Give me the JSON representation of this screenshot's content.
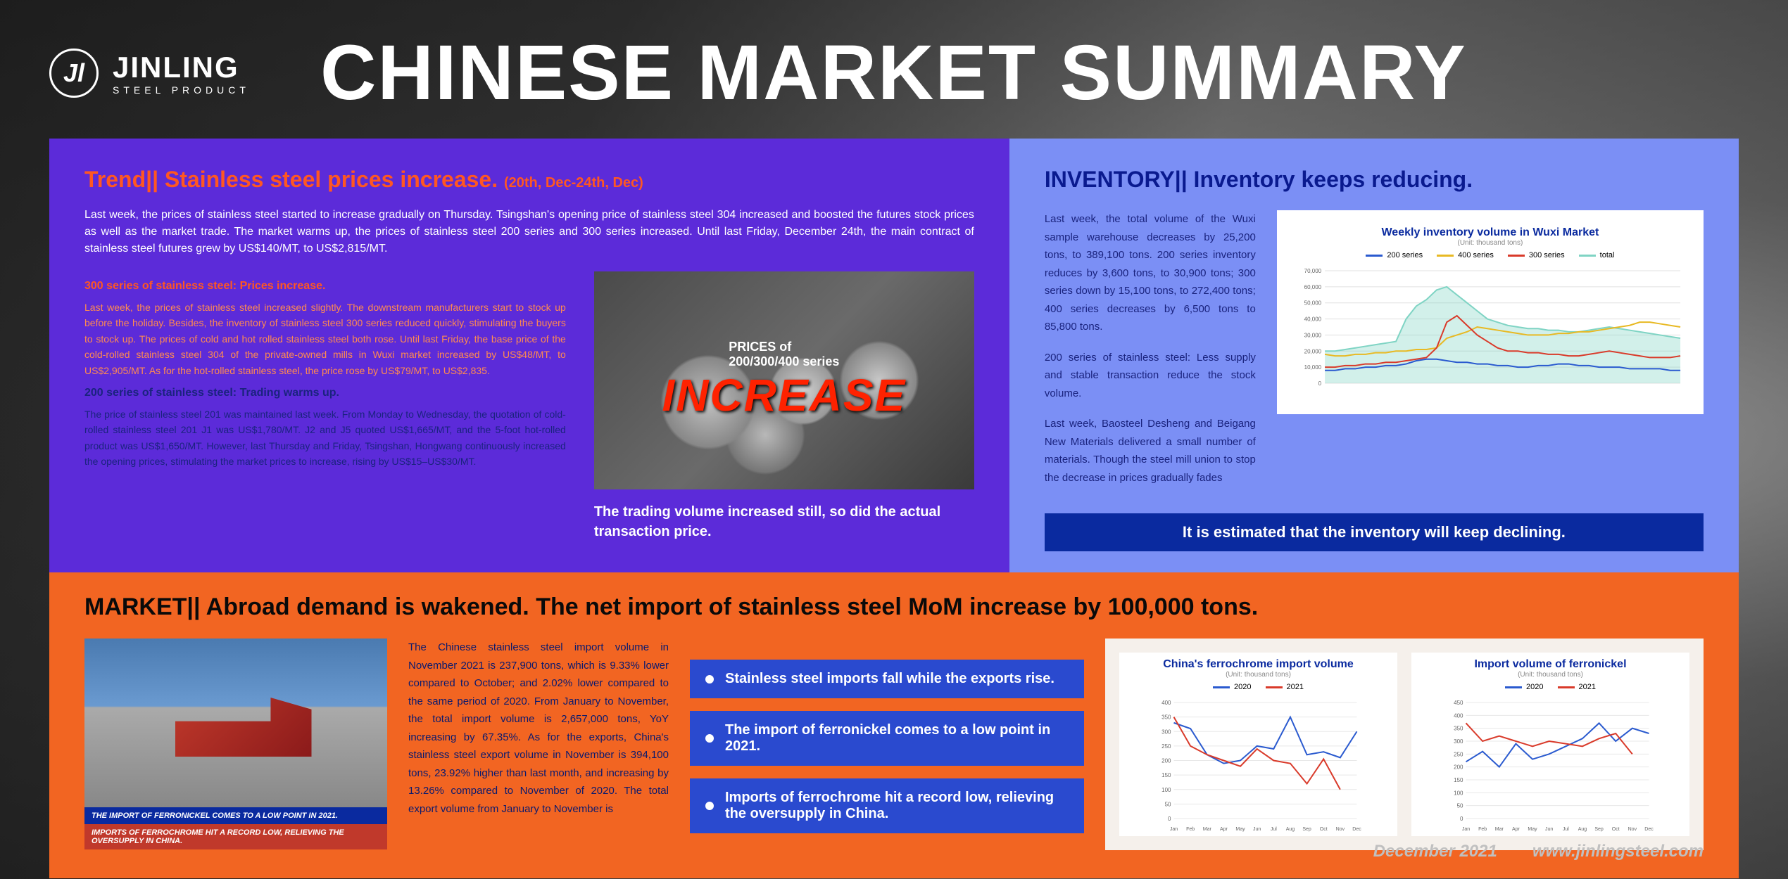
{
  "header": {
    "brand": "JINLING",
    "brand_sub": "STEEL PRODUCT",
    "title": "CHINESE MARKET SUMMARY"
  },
  "trend": {
    "title_prefix": "Trend|| ",
    "title_main": "Stainless steel prices increase.",
    "title_range": "(20th, Dec-24th, Dec)",
    "intro": "Last week, the prices of stainless steel started to increase gradually on Thursday. Tsingshan's opening price of stainless steel 304 increased and boosted the futures stock prices as well as the market trade. The market warms up, the prices of stainless steel 200 series and 300 series increased. Until last Friday, December 24th, the main contract of stainless steel futures grew by US$140/MT, to US$2,815/MT.",
    "sec300_h": "300 series of stainless steel: Prices increase.",
    "sec300_p": "Last week, the prices of stainless steel increased slightly. The downstream manufacturers start to stock up before the holiday. Besides, the inventory of stainless steel 300 series reduced quickly, stimulating the buyers to stock up. The prices of cold and hot rolled stainless steel both rose. Until last Friday, the base price of the cold-rolled stainless steel 304 of the private-owned mills in Wuxi market increased by US$48/MT, to US$2,905/MT. As for the hot-rolled stainless steel, the price rose by US$79/MT, to US$2,835.",
    "sec200_h": "200 series of stainless steel: Trading warms up.",
    "sec200_p": "The price of stainless steel 201 was maintained last week. From Monday to Wednesday, the quotation of cold-rolled stainless steel 201 J1 was US$1,780/MT. J2 and J5 quoted US$1,665/MT, and the 5-foot hot-rolled product was US$1,650/MT. However, last Thursday and Friday, Tsingshan, Hongwang continuously increased the opening prices, stimulating the market prices to increase, rising by US$15–US$30/MT.",
    "img_label": "PRICES of\n200/300/400 series",
    "img_big": "INCREASE",
    "img_caption": "The trading volume increased still, so did the actual transaction price."
  },
  "inventory": {
    "title": "INVENTORY|| Inventory keeps reducing.",
    "p1": "Last week, the total volume of the Wuxi sample warehouse decreases by 25,200 tons, to 389,100 tons. 200 series inventory reduces by 3,600 tons, to 30,900 tons; 300 series down by 15,100 tons, to 272,400 tons; 400 series decreases by 6,500 tons to 85,800 tons.",
    "p2": "200 series of stainless steel: Less supply and stable transaction reduce the stock volume.",
    "p3": "Last week, Baosteel Desheng and Beigang New Materials delivered a small number of materials. Though the steel mill union to stop the decrease in prices gradually fades",
    "chart": {
      "title": "Weekly inventory volume in Wuxi Market",
      "unit": "(Unit: thousand tons)",
      "legend": [
        {
          "label": "200 series",
          "color": "#2a5acf"
        },
        {
          "label": "400 series",
          "color": "#e8b923"
        },
        {
          "label": "300 series",
          "color": "#d93a2a"
        },
        {
          "label": "total",
          "color": "#7fd4c4"
        }
      ],
      "ylim": [
        0,
        70000
      ],
      "yticks": [
        0,
        10000,
        20000,
        30000,
        40000,
        50000,
        60000,
        70000
      ],
      "grid_color": "#e0e0e0",
      "series_200": [
        8,
        8,
        9,
        9,
        10,
        10,
        11,
        11,
        12,
        14,
        15,
        15,
        14,
        13,
        13,
        12,
        12,
        11,
        11,
        10,
        10,
        11,
        11,
        12,
        12,
        11,
        11,
        10,
        10,
        10,
        9,
        9,
        9,
        9,
        8,
        8
      ],
      "series_400": [
        18,
        17,
        17,
        18,
        18,
        19,
        19,
        20,
        20,
        21,
        21,
        22,
        28,
        30,
        32,
        35,
        34,
        33,
        32,
        31,
        30,
        30,
        30,
        31,
        31,
        32,
        32,
        33,
        34,
        35,
        36,
        38,
        38,
        37,
        36,
        35
      ],
      "series_300": [
        10,
        10,
        11,
        11,
        12,
        12,
        13,
        13,
        14,
        15,
        16,
        22,
        38,
        42,
        36,
        30,
        26,
        22,
        20,
        20,
        19,
        19,
        18,
        18,
        17,
        17,
        18,
        19,
        20,
        19,
        18,
        17,
        16,
        16,
        16,
        17
      ],
      "series_total": [
        20,
        20,
        21,
        22,
        23,
        24,
        25,
        26,
        40,
        48,
        52,
        58,
        60,
        55,
        50,
        45,
        40,
        38,
        36,
        35,
        34,
        34,
        33,
        33,
        32,
        32,
        33,
        34,
        35,
        34,
        33,
        32,
        31,
        30,
        29,
        28
      ]
    },
    "footer": "It is estimated that the inventory will keep declining."
  },
  "market": {
    "title": "MARKET|| Abroad demand is wakened. The net import of stainless steel MoM increase by 100,000 tons.",
    "img_banner1": "THE IMPORT OF FERRONICKEL COMES TO A LOW POINT IN 2021.",
    "img_banner2": "IMPORTS OF FERROCHROME HIT A RECORD LOW, RELIEVING THE OVERSUPPLY IN CHINA.",
    "text": "The Chinese stainless steel import volume in November 2021 is 237,900 tons, which is 9.33% lower compared to October; and 2.02% lower compared to the same period of 2020. From January to November, the total import volume is 2,657,000 tons, YoY increasing by 67.35%. As for the exports, China's stainless steel export volume in November is 394,100 tons, 23.92% higher than last month, and increasing by 13.26% compared to November of 2020. The total export volume from January to November is",
    "bullets": [
      "Stainless steel imports fall while the exports rise.",
      "The import of ferronickel comes to a low point in 2021.",
      "Imports of ferrochrome hit a record low, relieving the oversupply in China."
    ],
    "chart1": {
      "title": "China's ferrochrome import volume",
      "unit": "(Unit: thousand tons)",
      "legend": [
        {
          "label": "2020",
          "color": "#2a5acf"
        },
        {
          "label": "2021",
          "color": "#d93a2a"
        }
      ],
      "months": [
        "Jan",
        "Feb",
        "Mar",
        "Apr",
        "May",
        "Jun",
        "Jul",
        "Aug",
        "Sep",
        "Oct",
        "Nov",
        "Dec"
      ],
      "ylim": [
        0,
        400
      ],
      "ytick_step": 50,
      "s2020": [
        330,
        310,
        220,
        190,
        200,
        250,
        240,
        350,
        220,
        230,
        210,
        300
      ],
      "s2021": [
        350,
        250,
        220,
        200,
        180,
        240,
        200,
        190,
        120,
        205,
        100,
        null
      ]
    },
    "chart2": {
      "title": "Import volume of ferronickel",
      "unit": "(Unit: thousand tons)",
      "legend": [
        {
          "label": "2020",
          "color": "#2a5acf"
        },
        {
          "label": "2021",
          "color": "#d93a2a"
        }
      ],
      "months": [
        "Jan",
        "Feb",
        "Mar",
        "Apr",
        "May",
        "Jun",
        "Jul",
        "Aug",
        "Sep",
        "Oct",
        "Nov",
        "Dec"
      ],
      "ylim": [
        0,
        450
      ],
      "ytick_step": 50,
      "s2020": [
        220,
        260,
        200,
        290,
        230,
        250,
        280,
        310,
        370,
        300,
        350,
        330
      ],
      "s2021": [
        370,
        300,
        320,
        300,
        280,
        300,
        290,
        280,
        310,
        330,
        250,
        null
      ]
    }
  },
  "footer": {
    "date": "December 2021",
    "url": "www.jinlingsteel.com"
  },
  "colors": {
    "purple": "#5c2bd9",
    "lightblue": "#7b8ff5",
    "orange": "#f26522",
    "orange_text": "#ff5722",
    "navy": "#0a1a8f"
  }
}
